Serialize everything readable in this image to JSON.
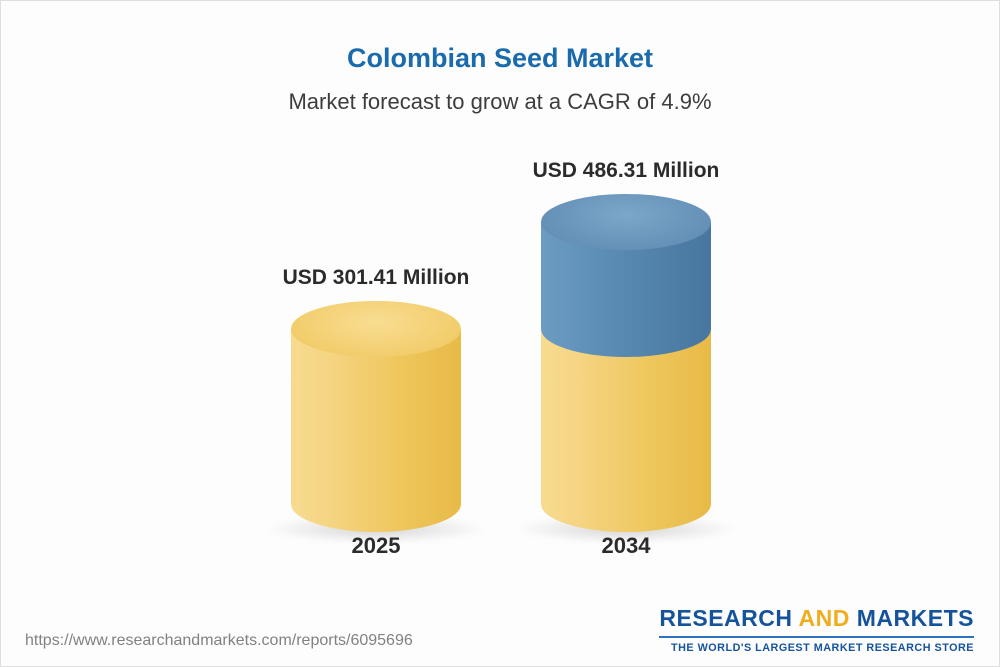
{
  "header": {
    "title": "Colombian Seed Market",
    "subtitle": "Market forecast to grow at a CAGR of 4.9%"
  },
  "chart_data": {
    "type": "bar",
    "variant": "3d-cylinder",
    "categories": [
      "2025",
      "2034"
    ],
    "values": [
      301.41,
      486.31
    ],
    "value_labels": [
      "USD 301.41 Million",
      "USD 486.31 Million"
    ],
    "unit": "USD Million",
    "cagr_pct": 4.9,
    "ylim": [
      0,
      486.31
    ],
    "grid": false,
    "legend": "none",
    "colors": {
      "base_segment": "#f0c75e",
      "growth_segment": "#4e81ad",
      "title": "#1a6bad"
    }
  },
  "footer": {
    "url": "https://www.researchandmarkets.com/reports/6095696",
    "logo": {
      "word1": "RESEARCH",
      "word2": "AND",
      "word3": "MARKETS",
      "tagline": "THE WORLD'S LARGEST MARKET RESEARCH STORE",
      "brand_blue": "#15539c",
      "brand_gold": "#f0ad1d"
    }
  }
}
